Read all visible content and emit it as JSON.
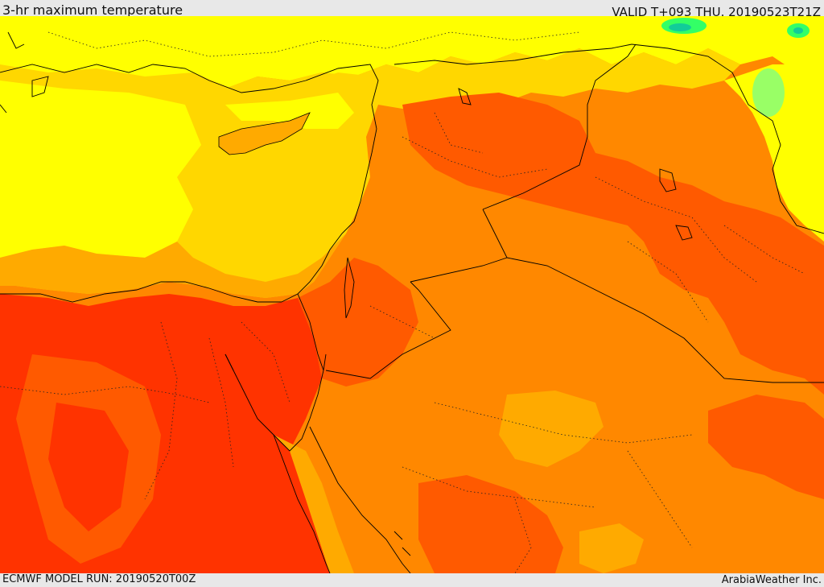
{
  "header": {
    "title": "3-hr maximum temperature",
    "valid": "VALID T+093 THU. 20190523T21Z"
  },
  "footer": {
    "model_run": "ECMWF MODEL RUN: 20190520T00Z",
    "credit": "ArabiaWeather Inc."
  },
  "map": {
    "type": "filled-contour temperature map",
    "colors": {
      "yellow": "#ffff00",
      "gold": "#ffd700",
      "light_orange": "#ffaa00",
      "orange": "#ff8800",
      "dark_orange": "#ff5a00",
      "red": "#ff3300",
      "green": "#33ff66",
      "teal": "#11cc99",
      "border": "#000000"
    }
  }
}
